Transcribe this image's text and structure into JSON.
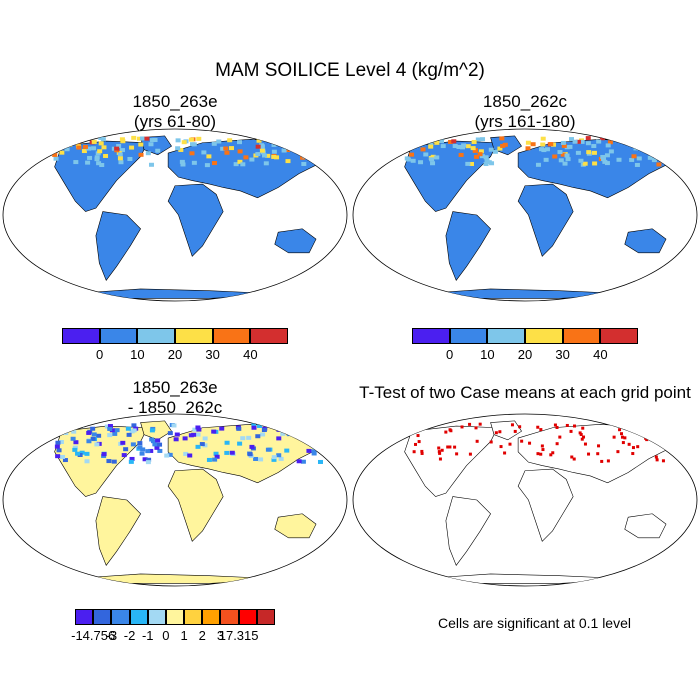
{
  "main_title": "MAM SOILICE Level 4 (kg/m^2)",
  "panel_a": {
    "line1": "1850_263e",
    "line2": "(yrs 61-80)"
  },
  "panel_b": {
    "line1": "1850_262c",
    "line2": "(yrs 161-180)"
  },
  "panel_c": {
    "line1": "1850_263e",
    "line2": "- 1850_262c"
  },
  "panel_d": {
    "title": "T-Test of two Case means at each grid point"
  },
  "significance_note": "Cells are significant at 0.1 level",
  "colorbar_main": {
    "labels": [
      "0",
      "10",
      "20",
      "30",
      "40"
    ],
    "colors": [
      "#4b1ff0",
      "#3a86e8",
      "#7ec6ea",
      "#fde047",
      "#f97316",
      "#d32f2f"
    ]
  },
  "colorbar_diff": {
    "labels": [
      "-14.756",
      "-3",
      "-2",
      "-1",
      "0",
      "1",
      "2",
      "3",
      "17.315"
    ],
    "colors": [
      "#4b1ff0",
      "#3366dd",
      "#3a86e8",
      "#29b6f6",
      "#a3d9f3",
      "#fff59d",
      "#ffd23f",
      "#ffa000",
      "#f4511e",
      "#ff0000",
      "#c62828"
    ]
  },
  "map_colors": {
    "ocean": "#ffffff",
    "land_low": "#3a86e8",
    "land_diff": "#fff59d",
    "sig": "#e00000"
  }
}
